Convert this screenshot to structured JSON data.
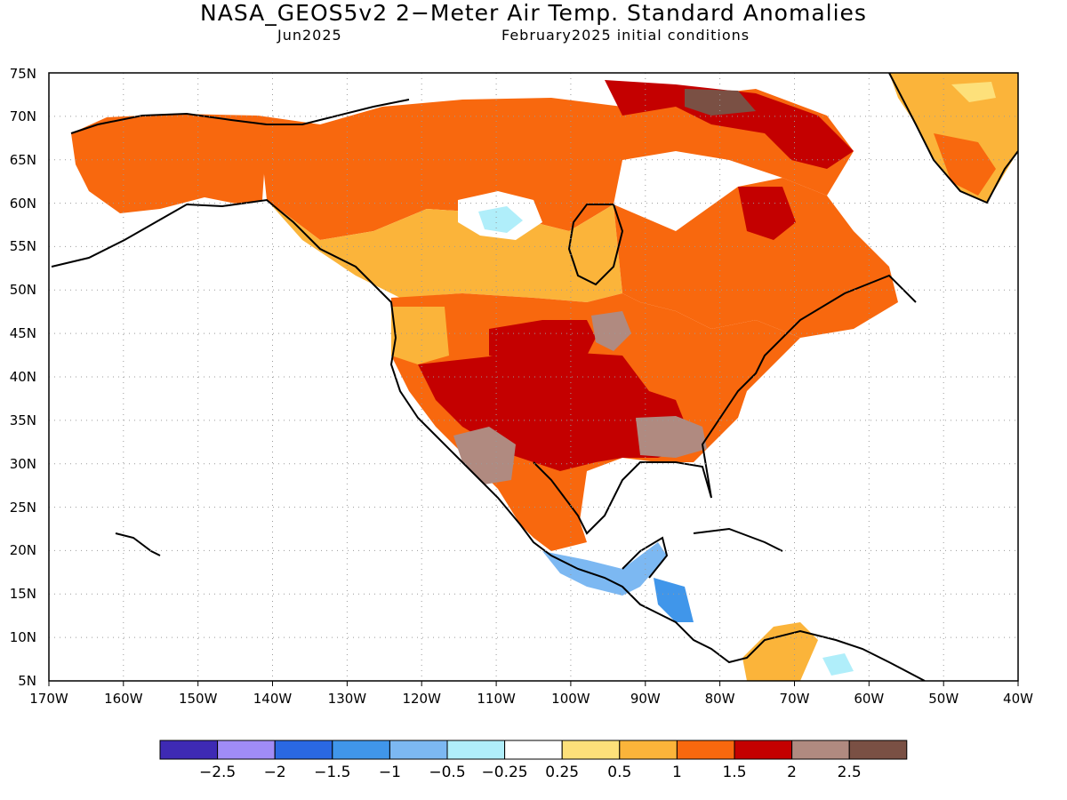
{
  "header": {
    "title": "NASA_GEOS5v2 2−Meter Air Temp. Standard Anomalies",
    "valid_month": "Jun2025",
    "init": "February2025 initial conditions"
  },
  "map": {
    "lon_range": [
      -170,
      -40
    ],
    "lat_range": [
      5,
      75
    ],
    "lat_labels": [
      "5N",
      "10N",
      "15N",
      "20N",
      "25N",
      "30N",
      "35N",
      "40N",
      "45N",
      "50N",
      "55N",
      "60N",
      "65N",
      "70N",
      "75N"
    ],
    "lon_labels": [
      "170W",
      "160W",
      "150W",
      "140W",
      "130W",
      "120W",
      "110W",
      "100W",
      "90W",
      "80W",
      "70W",
      "60W",
      "50W",
      "40W"
    ],
    "grid": "dotted"
  },
  "colorbar": {
    "colors": [
      "#3e2ab4",
      "#a08cf6",
      "#2a68e2",
      "#4096ea",
      "#7cb8f2",
      "#b0eefa",
      "#ffffff",
      "#fde07a",
      "#fbb43a",
      "#f8680e",
      "#c40000",
      "#b08a80",
      "#7a5044"
    ],
    "labels": [
      "−2.5",
      "−2",
      "−1.5",
      "−1",
      "−0.5",
      "−0.25",
      "0.25",
      "0.5",
      "1",
      "1.5",
      "2",
      "2.5"
    ]
  }
}
